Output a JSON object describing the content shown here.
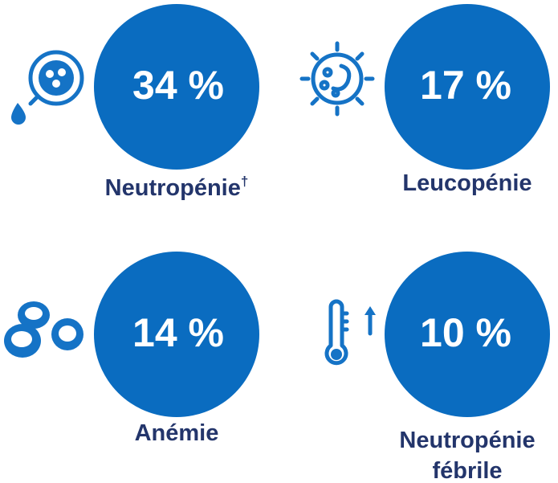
{
  "items": [
    {
      "value_label": "34 %",
      "label": "Neutropénie",
      "superscript": "†"
    },
    {
      "value_label": "17 %",
      "label": "Leucopénie"
    },
    {
      "value_label": "14 %",
      "label": "Anémie"
    },
    {
      "value_label": "10 %",
      "label_lines": [
        "Neutropénie",
        "fébrile"
      ]
    }
  ]
}
